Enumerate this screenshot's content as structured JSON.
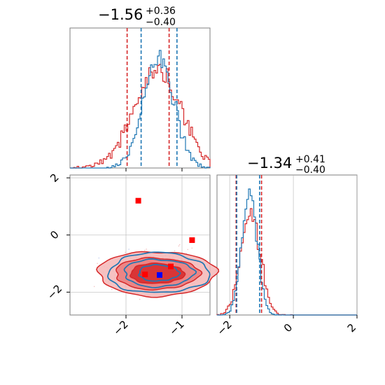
{
  "chart_data": {
    "type": "corner",
    "parameters": [
      "param_0",
      "param_1"
    ],
    "colors": {
      "blue": "#1f77b4",
      "red": "#d62728",
      "marker_red": "#ff0000",
      "marker_blue": "#0000ff"
    },
    "grid": true,
    "panels": {
      "p0_hist": {
        "type": "histogram",
        "xlim": [
          -3.0,
          -0.5
        ],
        "title": {
          "main": "−1.56",
          "upper": "+0.36",
          "lower": "−0.40"
        },
        "quantiles_red": [
          -1.98,
          -1.23
        ],
        "quantiles_blue": [
          -1.73,
          -1.09
        ]
      },
      "p1_hist": {
        "type": "histogram",
        "xlim": [
          -2.4,
          2.0
        ],
        "xticks": [
          -2,
          0,
          2
        ],
        "xtick_labels": [
          "−2",
          "0",
          "2"
        ],
        "title": {
          "main": "−1.34",
          "upper": "+0.41",
          "lower": "−0.40"
        },
        "quantiles_red": [
          -1.8,
          -1.0
        ],
        "quantiles_blue": [
          -1.78,
          -1.06
        ]
      },
      "joint": {
        "type": "contour",
        "xlim": [
          -3.0,
          -0.5
        ],
        "ylim": [
          -2.8,
          2.1
        ],
        "xticks": [
          -2,
          -1
        ],
        "xtick_labels": [
          "−2",
          "−1"
        ],
        "yticks": [
          -2,
          0,
          2
        ],
        "ytick_labels": [
          "−2",
          "0",
          "2"
        ],
        "red_markers": [
          [
            -1.78,
            1.2
          ],
          [
            -0.82,
            -0.18
          ],
          [
            -1.66,
            -1.38
          ],
          [
            -1.2,
            -1.1
          ]
        ],
        "blue_markers": [
          [
            -1.4,
            -1.4
          ]
        ]
      }
    }
  }
}
